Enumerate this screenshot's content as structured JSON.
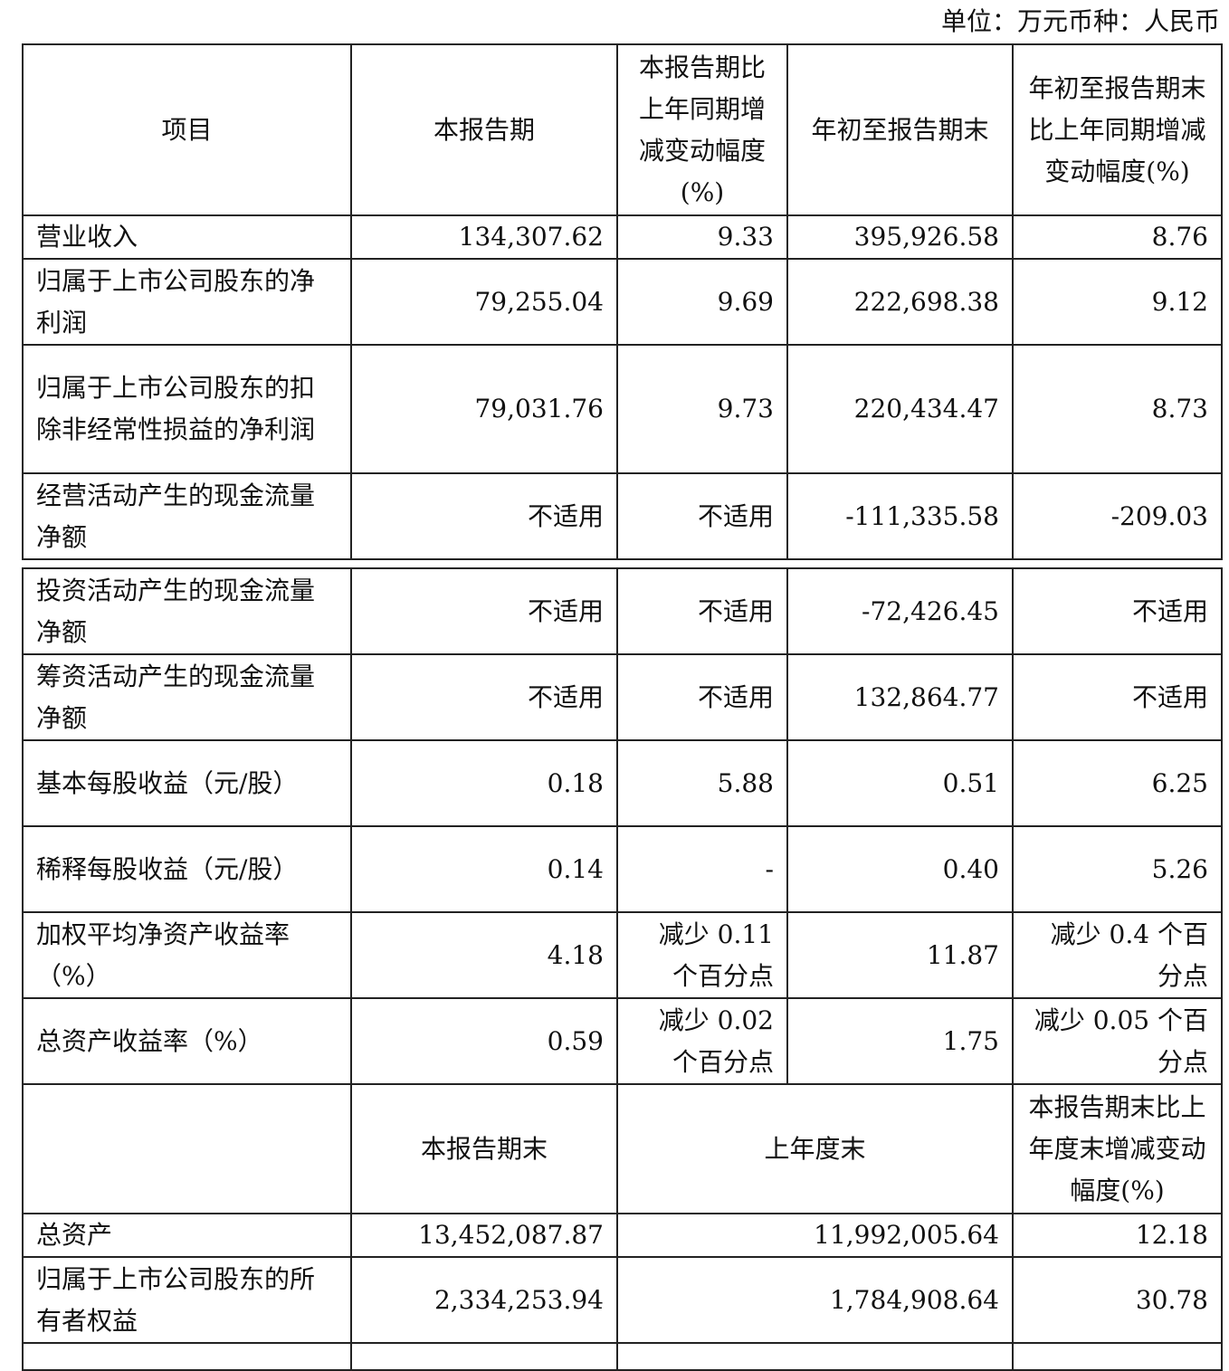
{
  "unit_label": "单位：万元币种：人民币",
  "header": {
    "item": "项目",
    "current": "本报告期",
    "current_change": "本报告期比上年同期增减变动幅度(%)",
    "ytd": "年初至报告期末",
    "ytd_change": "年初至报告期末比上年同期增减变动幅度(%)"
  },
  "rows_part1": [
    {
      "item": "营业收入",
      "current": "134,307.62",
      "current_change": "9.33",
      "ytd": "395,926.58",
      "ytd_change": "8.76"
    },
    {
      "item": "归属于上市公司股东的净利润",
      "current": "79,255.04",
      "current_change": "9.69",
      "ytd": "222,698.38",
      "ytd_change": "9.12"
    },
    {
      "item": "归属于上市公司股东的扣除非经常性损益的净利润",
      "current": "79,031.76",
      "current_change": "9.73",
      "ytd": "220,434.47",
      "ytd_change": "8.73"
    },
    {
      "item": "经营活动产生的现金流量净额",
      "current": "不适用",
      "current_change": "不适用",
      "ytd": "-111,335.58",
      "ytd_change": "-209.03"
    }
  ],
  "rows_part2": [
    {
      "item": "投资活动产生的现金流量净额",
      "current": "不适用",
      "current_change": "不适用",
      "ytd": "-72,426.45",
      "ytd_change": "不适用"
    },
    {
      "item": "筹资活动产生的现金流量净额",
      "current": "不适用",
      "current_change": "不适用",
      "ytd": "132,864.77",
      "ytd_change": "不适用"
    },
    {
      "item": "基本每股收益（元/股）",
      "current": "0.18",
      "current_change": "5.88",
      "ytd": "0.51",
      "ytd_change": "6.25"
    },
    {
      "item": "稀释每股收益（元/股）",
      "current": "0.14",
      "current_change": "-",
      "ytd": "0.40",
      "ytd_change": "5.26"
    },
    {
      "item": "加权平均净资产收益率（%）",
      "current": "4.18",
      "current_change": "减少 0.11 个百分点",
      "ytd": "11.87",
      "ytd_change": "减少 0.4 个百分点"
    },
    {
      "item": "总资产收益率（%）",
      "current": "0.59",
      "current_change": "减少 0.02 个百分点",
      "ytd": "1.75",
      "ytd_change": "减少 0.05 个百分点"
    }
  ],
  "balance_header": {
    "item": "",
    "period_end": "本报告期末",
    "prior_year_end": "上年度末",
    "change": "本报告期末比上年度末增减变动幅度(%)"
  },
  "balance_rows": [
    {
      "item": "总资产",
      "period_end": "13,452,087.87",
      "prior_year_end": "11,992,005.64",
      "change": "12.18"
    },
    {
      "item": "归属于上市公司股东的所有者权益",
      "period_end": "2,334,253.94",
      "prior_year_end": "1,784,908.64",
      "change": "30.78"
    }
  ]
}
